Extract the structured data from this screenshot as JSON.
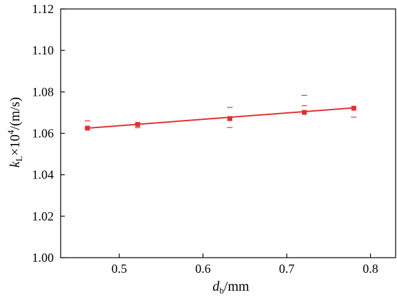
{
  "chart_data": {
    "type": "scatter",
    "xlabel": {
      "symbol": "d",
      "subscript": "b",
      "unit": "/mm"
    },
    "ylabel": {
      "symbol": "k",
      "subscript": "L",
      "text": "×10",
      "superscript": "4",
      "unit": "/(m/s)"
    },
    "xlim": [
      0.43,
      0.83
    ],
    "ylim": [
      1.0,
      1.12
    ],
    "x_ticks": [
      0.5,
      0.6,
      0.7,
      0.8
    ],
    "x_tick_labels": [
      "0.5",
      "0.6",
      "0.7",
      "0.8"
    ],
    "y_ticks": [
      1.0,
      1.02,
      1.04,
      1.06,
      1.08,
      1.1,
      1.12
    ],
    "y_tick_labels": [
      "1.00",
      "1.02",
      "1.04",
      "1.06",
      "1.08",
      "1.10",
      "1.12"
    ],
    "grid": false,
    "series": [
      {
        "x": [
          0.462,
          0.522,
          0.632,
          0.721,
          0.78
        ],
        "y": [
          1.0625,
          1.0643,
          1.0671,
          1.0701,
          1.0721
        ],
        "y_error_upper": [
          1.066,
          1.0647,
          1.0725,
          1.0783,
          1.0722
        ],
        "y_error_lower": [
          1.0625,
          1.0627,
          1.0628,
          1.0733,
          1.0678
        ],
        "fit_line": {
          "x": [
            0.462,
            0.78
          ],
          "y": [
            1.0625,
            1.0723
          ]
        },
        "color": "#e03030",
        "marker": "square"
      }
    ]
  }
}
